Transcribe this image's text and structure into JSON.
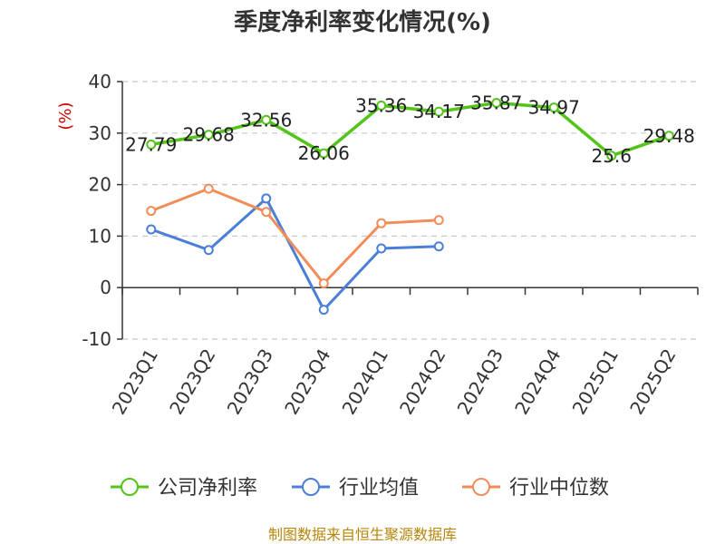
{
  "chart_data": {
    "type": "line",
    "title": "季度净利率变化情况(%)",
    "ylabel": "(%)",
    "xlabel": "",
    "categories": [
      "2023Q1",
      "2023Q2",
      "2023Q3",
      "2023Q4",
      "2024Q1",
      "2024Q2",
      "2024Q3",
      "2024Q4",
      "2025Q1",
      "2025Q2"
    ],
    "ylim": [
      -10,
      40
    ],
    "yticks": [
      "40",
      "30",
      "20",
      "10",
      "0",
      "-10"
    ],
    "grid": "horizontal dashed",
    "legend_position": "bottom",
    "series": [
      {
        "name": "公司净利率",
        "color": "#52c41a",
        "values": [
          27.79,
          29.68,
          32.56,
          26.06,
          35.36,
          34.17,
          35.87,
          34.97,
          25.6,
          29.48
        ],
        "labels": [
          "27.79",
          "29.68",
          "32.56",
          "26.06",
          "35.36",
          "34.17",
          "35.87",
          "34.97",
          "25.6",
          "29.48"
        ]
      },
      {
        "name": "行业均值",
        "color": "#4a7fd8",
        "values": [
          11.3,
          7.3,
          17.3,
          -4.3,
          7.6,
          8.0,
          null,
          null,
          null,
          null
        ]
      },
      {
        "name": "行业中位数",
        "color": "#f28c5a",
        "values": [
          14.9,
          19.2,
          14.7,
          0.8,
          12.5,
          13.1,
          null,
          null,
          null,
          null
        ]
      }
    ]
  },
  "source_text": "制图数据来自恒生聚源数据库"
}
